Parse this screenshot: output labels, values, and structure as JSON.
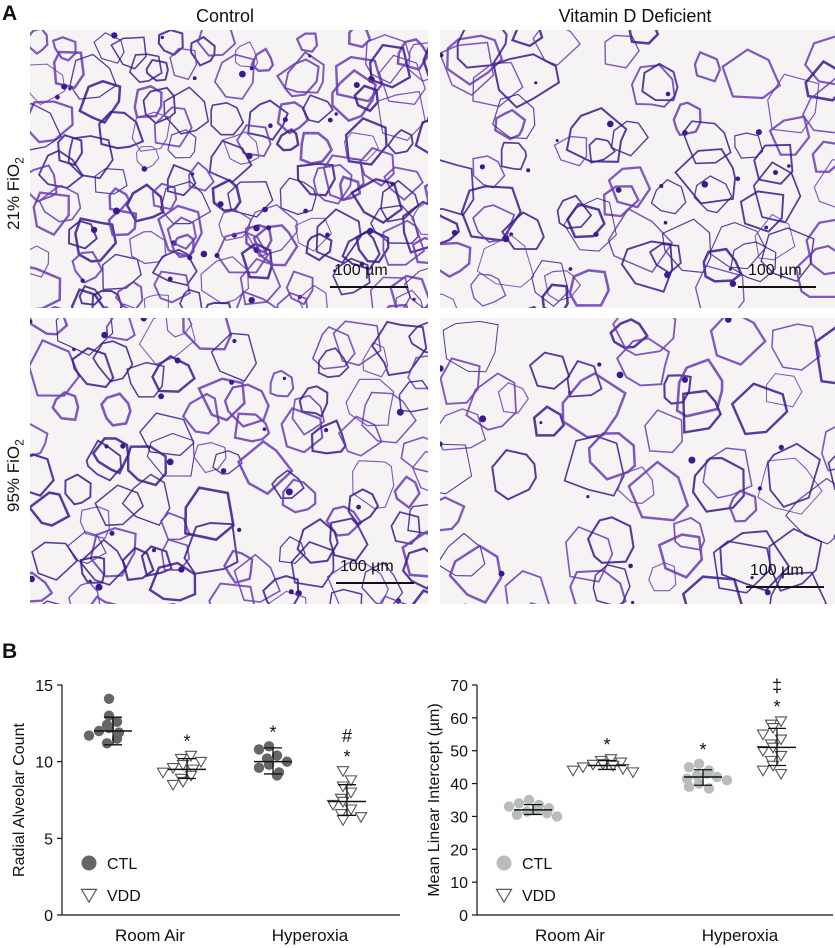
{
  "panel_a": {
    "letter": "A",
    "columns": [
      "Control",
      "Vitamin D Deficient"
    ],
    "rows": [
      {
        "label_main": "21% FiO",
        "label_sub": "2"
      },
      {
        "label_main": "95% FiO",
        "label_sub": "2"
      }
    ],
    "scale_bar_label": "100 µm",
    "colors": {
      "tissue": "#6a3bb5",
      "tissue_dark": "#3a1a8c",
      "background": "#f5f3f3"
    }
  },
  "panel_b": {
    "letter": "B"
  },
  "chart_data": [
    {
      "type": "scatter",
      "title": "",
      "xlabel": "",
      "ylabel": "Radial Alveolar Count",
      "ylim": [
        0,
        15
      ],
      "yticks": [
        0,
        5,
        10,
        15
      ],
      "categories": [
        "Room Air",
        "Hyperoxia"
      ],
      "legend_position": "bottom-left",
      "series": [
        {
          "name": "CTL",
          "marker": "filled-circle",
          "color": "#666666",
          "groups": [
            {
              "category": "Room Air",
              "mean": 12.0,
              "sd_low": 11.1,
              "sd_high": 12.9,
              "points": [
                14.1,
                13.0,
                12.6,
                12.4,
                12.2,
                12.0,
                11.9,
                11.7,
                11.5,
                11.2
              ]
            },
            {
              "category": "Hyperoxia",
              "mean": 10.0,
              "sd_low": 9.2,
              "sd_high": 10.9,
              "points": [
                11.0,
                10.8,
                10.4,
                10.2,
                10.0,
                9.8,
                9.6,
                9.3,
                9.1
              ]
            }
          ]
        },
        {
          "name": "VDD",
          "marker": "open-triangle-down",
          "color": "#555555",
          "groups": [
            {
              "category": "Room Air",
              "mean": 9.5,
              "sd_low": 8.9,
              "sd_high": 10.2,
              "points": [
                10.4,
                10.2,
                10.0,
                9.8,
                9.6,
                9.5,
                9.3,
                9.1,
                8.9,
                8.7,
                8.5
              ]
            },
            {
              "category": "Hyperoxia",
              "mean": 7.4,
              "sd_low": 6.5,
              "sd_high": 8.5,
              "points": [
                9.4,
                8.8,
                8.4,
                8.0,
                7.6,
                7.4,
                7.2,
                6.9,
                6.6,
                6.4,
                6.2
              ]
            }
          ]
        }
      ],
      "annotations": [
        {
          "category": "Room Air",
          "series": "VDD",
          "text": "*"
        },
        {
          "category": "Hyperoxia",
          "series": "CTL",
          "text": "*"
        },
        {
          "category": "Hyperoxia",
          "series": "VDD",
          "text": "#"
        },
        {
          "category": "Hyperoxia",
          "series": "VDD",
          "text": "*"
        }
      ]
    },
    {
      "type": "scatter",
      "title": "",
      "xlabel": "",
      "ylabel": "Mean Linear Intercept (µm)",
      "ylim": [
        0,
        70
      ],
      "yticks": [
        0,
        10,
        20,
        30,
        40,
        50,
        60,
        70
      ],
      "categories": [
        "Room Air",
        "Hyperoxia"
      ],
      "legend_position": "bottom-left",
      "series": [
        {
          "name": "CTL",
          "marker": "filled-circle",
          "color": "#b8bcbc",
          "groups": [
            {
              "category": "Room Air",
              "mean": 32.0,
              "sd_low": 30.6,
              "sd_high": 33.6,
              "points": [
                35.0,
                34.0,
                33.5,
                33.0,
                32.5,
                32.0,
                31.5,
                31.0,
                30.5,
                30.0
              ]
            },
            {
              "category": "Hyperoxia",
              "mean": 42.0,
              "sd_low": 39.5,
              "sd_high": 44.2,
              "points": [
                46.0,
                45.0,
                44.0,
                43.0,
                42.5,
                42.0,
                41.5,
                41.0,
                40.0,
                39.0,
                38.5
              ]
            }
          ]
        },
        {
          "name": "VDD",
          "marker": "open-triangle-down",
          "color": "#555555",
          "groups": [
            {
              "category": "Room Air",
              "mean": 45.5,
              "sd_low": 44.3,
              "sd_high": 47.0,
              "points": [
                47.5,
                47.0,
                46.5,
                46.0,
                45.8,
                45.5,
                45.0,
                44.5,
                44.0,
                43.5
              ]
            },
            {
              "category": "Hyperoxia",
              "mean": 51.0,
              "sd_low": 45.5,
              "sd_high": 56.8,
              "points": [
                59.0,
                58.0,
                57.0,
                55.0,
                53.5,
                52.0,
                51.0,
                50.0,
                48.5,
                47.0,
                45.5,
                44.0,
                43.0
              ]
            }
          ]
        }
      ],
      "annotations": [
        {
          "category": "Room Air",
          "series": "VDD",
          "text": "*"
        },
        {
          "category": "Hyperoxia",
          "series": "CTL",
          "text": "*"
        },
        {
          "category": "Hyperoxia",
          "series": "VDD",
          "text": "‡"
        },
        {
          "category": "Hyperoxia",
          "series": "VDD",
          "text": "*"
        }
      ]
    }
  ]
}
